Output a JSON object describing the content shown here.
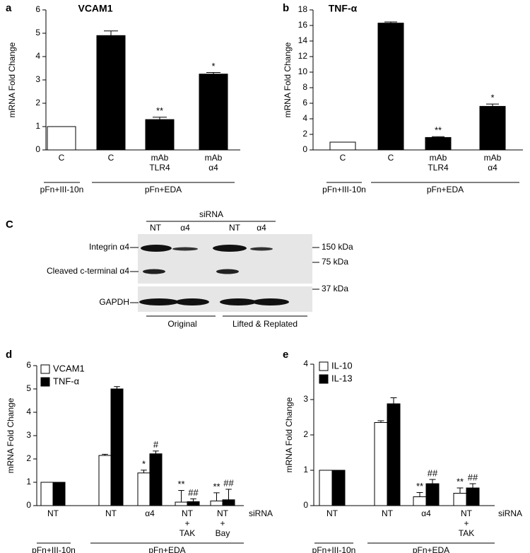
{
  "chart_data": [
    {
      "type": "bar",
      "panel": "a",
      "title": "VCAM1",
      "ylabel": "mRNA Fold Change",
      "categories": [
        [
          "C"
        ],
        [
          "C"
        ],
        [
          "mAb",
          "TLR4"
        ],
        [
          "mAb",
          "α4"
        ]
      ],
      "values": [
        1,
        4.9,
        1.3,
        3.25
      ],
      "errors": [
        0,
        0.2,
        0.1,
        0.07
      ],
      "colors": [
        "#ffffff",
        "#000000",
        "#000000",
        "#000000"
      ],
      "sig": [
        null,
        null,
        "**",
        "*"
      ],
      "groups": [
        "pFn+III-10n",
        "pFn+EDA"
      ],
      "ylim": [
        0,
        6
      ],
      "yticks": [
        0,
        1,
        2,
        3,
        4,
        5,
        6
      ]
    },
    {
      "type": "bar",
      "panel": "b",
      "title": "TNF-α",
      "ylabel": "mRNA Fold Change",
      "categories": [
        [
          "C"
        ],
        [
          "C"
        ],
        [
          "mAb",
          "TLR4"
        ],
        [
          "mAb",
          "α4"
        ]
      ],
      "values": [
        1,
        16.3,
        1.6,
        5.6
      ],
      "errors": [
        0,
        0.15,
        0.1,
        0.3
      ],
      "colors": [
        "#ffffff",
        "#000000",
        "#000000",
        "#000000"
      ],
      "sig": [
        null,
        null,
        "**",
        "*"
      ],
      "groups": [
        "pFn+III-10n",
        "pFn+EDA"
      ],
      "ylim": [
        0,
        18
      ],
      "yticks": [
        0,
        2,
        4,
        6,
        8,
        10,
        12,
        14,
        16,
        18
      ]
    },
    {
      "type": "grouped-bar",
      "panel": "d",
      "ylabel": "mRNA Fold Change",
      "xlabel": "siRNA",
      "categories": [
        [
          "NT"
        ],
        [
          "NT"
        ],
        [
          "α4"
        ],
        [
          "NT",
          "+",
          "TAK"
        ],
        [
          "NT",
          "+",
          "Bay"
        ]
      ],
      "series": [
        {
          "name": "VCAM1",
          "color": "#ffffff",
          "values": [
            1,
            2.15,
            1.4,
            0.15,
            0.2
          ],
          "errors": [
            0,
            0.05,
            0.12,
            0.5,
            0.35
          ],
          "sig": [
            null,
            null,
            "*",
            "**",
            "**"
          ]
        },
        {
          "name": "TNF-α",
          "color": "#000000",
          "values": [
            1,
            5.0,
            2.22,
            0.17,
            0.25
          ],
          "errors": [
            0,
            0.1,
            0.12,
            0.12,
            0.45
          ],
          "sig": [
            null,
            null,
            "#",
            "##",
            "##"
          ]
        }
      ],
      "groups": [
        "pFn+III-10n",
        "pFn+EDA"
      ],
      "legend": "top-left",
      "ylim": [
        0,
        6
      ],
      "yticks": [
        0,
        1,
        2,
        3,
        4,
        5,
        6
      ]
    },
    {
      "type": "grouped-bar",
      "panel": "e",
      "ylabel": "mRNA Fold Change",
      "xlabel": "siRNA",
      "categories": [
        [
          "NT"
        ],
        [
          "NT"
        ],
        [
          "α4"
        ],
        [
          "NT",
          "+",
          "TAK"
        ]
      ],
      "series": [
        {
          "name": "IL-10",
          "color": "#ffffff",
          "values": [
            1,
            2.35,
            0.25,
            0.35
          ],
          "errors": [
            0,
            0.05,
            0.12,
            0.15
          ],
          "sig": [
            null,
            null,
            "**",
            "**"
          ]
        },
        {
          "name": "IL-13",
          "color": "#000000",
          "values": [
            1,
            2.88,
            0.62,
            0.5
          ],
          "errors": [
            0,
            0.17,
            0.12,
            0.12
          ],
          "sig": [
            null,
            null,
            "##",
            "##"
          ]
        }
      ],
      "groups": [
        "pFn+III-10n",
        "pFn+EDA"
      ],
      "legend": "top-left",
      "ylim": [
        0,
        4
      ],
      "yticks": [
        0,
        1,
        2,
        3,
        4
      ]
    }
  ],
  "blot": {
    "panel": "C",
    "header": "siRNA",
    "lanes": [
      "NT",
      "α4",
      "NT",
      "α4"
    ],
    "bands": [
      "Integrin α4",
      "Cleaved c-terminal α4",
      "GAPDH"
    ],
    "markers": [
      "150 kDa",
      "75 kDa",
      "37 kDa"
    ],
    "groups": [
      "Original",
      "Lifted & Replated"
    ]
  }
}
